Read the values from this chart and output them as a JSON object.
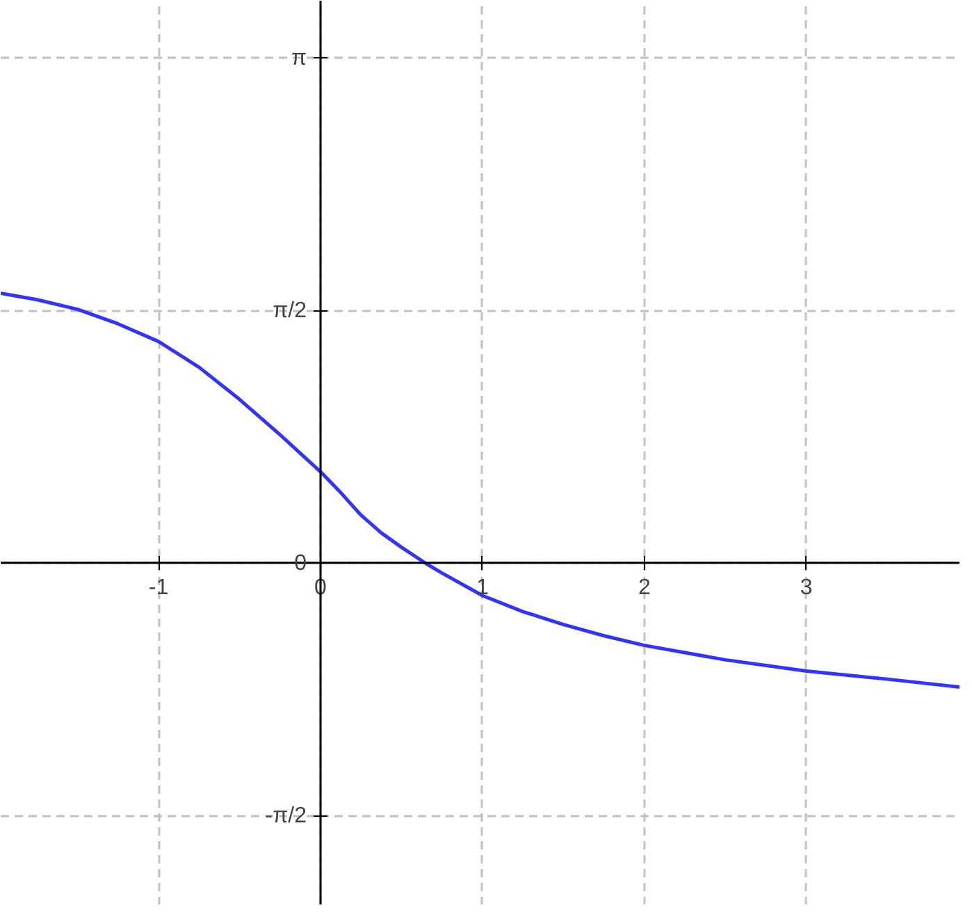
{
  "chart_data": {
    "type": "line",
    "x": [
      -1.975,
      -1.75,
      -1.5,
      -1.25,
      -1,
      -0.75,
      -0.5,
      -0.25,
      0,
      0.125,
      0.25,
      0.375,
      0.5,
      0.65,
      0.75,
      1,
      1.25,
      1.5,
      1.75,
      2,
      2.5,
      3,
      3.5,
      3.95
    ],
    "series": [
      {
        "color": "#3333ff",
        "values": [
          1.68,
          1.64,
          1.58,
          1.49,
          1.38,
          1.22,
          1.02,
          0.8,
          0.57,
          0.44,
          0.3,
          0.19,
          0.1,
          0,
          -0.06,
          -0.2,
          -0.3,
          -0.38,
          -0.45,
          -0.51,
          -0.6,
          -0.67,
          -0.72,
          -0.77
        ]
      }
    ],
    "xlim": [
      -1.975,
      3.95
    ],
    "ylim": [
      -2.126,
      3.5
    ],
    "xticks": [
      -1,
      0,
      1,
      2,
      3
    ],
    "yticks": [
      {
        "value": -1.5708,
        "label": "-π/2"
      },
      0,
      {
        "value": 1.5708,
        "label": "π/2"
      },
      {
        "value": 3.1416,
        "label": "π"
      }
    ],
    "grid": true,
    "line_style": "solid",
    "marker": "none"
  }
}
